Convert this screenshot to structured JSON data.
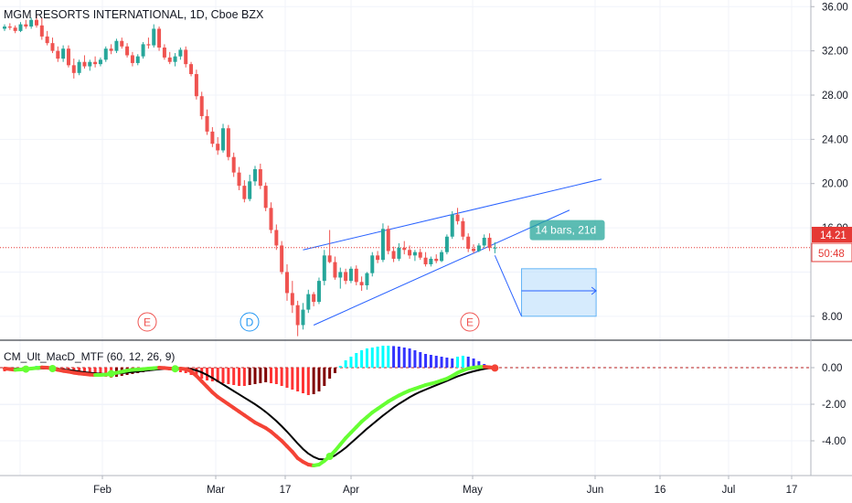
{
  "header": {
    "title": "MGM RESORTS INTERNATIONAL, 1D, Cboe BZX"
  },
  "price_axis": {
    "ticks": [
      "36.00",
      "32.00",
      "28.00",
      "24.00",
      "20.00",
      "16.00",
      "8.00"
    ],
    "last_price": "14.21",
    "countdown": "50:48"
  },
  "indicator": {
    "title": "CM_Ult_MacD_MTF (60, 12, 26, 9)",
    "ticks": [
      "0.00",
      "-2.00",
      "-4.00"
    ]
  },
  "time_axis": {
    "labels": [
      "Feb",
      "Mar",
      "17",
      "Apr",
      "May",
      "Jun",
      "16",
      "Jul",
      "17"
    ]
  },
  "event_markers": [
    {
      "label": "E"
    },
    {
      "label": "D"
    },
    {
      "label": "E"
    }
  ],
  "measure_label": "14 bars, 21d",
  "colors": {
    "bull": "#26a69a",
    "bear": "#ef5350",
    "trendline": "#2962ff",
    "price_line": "#e53935",
    "macd_fast_down": "#f44336",
    "macd_fast_up": "#66ff33",
    "macd_signal": "#000000",
    "hist_up_strong": "#00ffff",
    "hist_up_weak": "#3333ff",
    "hist_down_strong": "#ff3333",
    "hist_down_weak": "#800000",
    "measure_fill": "#bbdefb",
    "measure_label_bg": "#26a69a"
  },
  "chart_data": {
    "type": "candlestick",
    "symbol": "MGM RESORTS INTERNATIONAL",
    "interval": "1D",
    "exchange": "Cboe BZX",
    "ylim": [
      6,
      36.6
    ],
    "yticks": [
      8,
      16,
      20,
      24,
      28,
      32,
      36
    ],
    "last_price": 14.21,
    "candles": [
      [
        34.0,
        34.4,
        33.8,
        34.2
      ],
      [
        34.2,
        34.5,
        33.9,
        34.1
      ],
      [
        34.1,
        34.3,
        33.6,
        33.8
      ],
      [
        33.8,
        34.6,
        33.7,
        34.4
      ],
      [
        34.4,
        34.8,
        34.0,
        34.2
      ],
      [
        34.2,
        35.0,
        34.0,
        34.8
      ],
      [
        34.8,
        35.2,
        34.1,
        34.3
      ],
      [
        34.3,
        35.0,
        33.0,
        33.3
      ],
      [
        33.3,
        33.8,
        32.5,
        32.7
      ],
      [
        32.7,
        33.2,
        31.8,
        32.0
      ],
      [
        32.0,
        32.4,
        31.0,
        31.3
      ],
      [
        31.3,
        32.5,
        31.0,
        32.2
      ],
      [
        32.2,
        32.5,
        30.5,
        30.7
      ],
      [
        30.7,
        31.3,
        29.5,
        30.0
      ],
      [
        30.0,
        31.2,
        29.8,
        31.0
      ],
      [
        31.0,
        31.6,
        30.4,
        30.6
      ],
      [
        30.6,
        31.2,
        30.2,
        31.0
      ],
      [
        31.0,
        31.5,
        30.5,
        30.8
      ],
      [
        30.8,
        31.4,
        30.6,
        31.2
      ],
      [
        31.2,
        32.4,
        31.0,
        32.2
      ],
      [
        32.2,
        32.6,
        31.7,
        32.0
      ],
      [
        32.0,
        33.1,
        31.8,
        32.9
      ],
      [
        32.9,
        33.2,
        32.2,
        32.4
      ],
      [
        32.4,
        32.7,
        31.4,
        31.6
      ],
      [
        31.6,
        31.9,
        30.6,
        30.9
      ],
      [
        30.9,
        31.7,
        30.7,
        31.5
      ],
      [
        31.5,
        32.8,
        31.3,
        32.6
      ],
      [
        32.6,
        33.2,
        32.2,
        32.5
      ],
      [
        32.5,
        34.4,
        32.3,
        34.0
      ],
      [
        34.0,
        34.2,
        32.0,
        32.3
      ],
      [
        32.3,
        32.6,
        31.2,
        31.4
      ],
      [
        31.4,
        31.9,
        30.8,
        31.0
      ],
      [
        31.0,
        31.8,
        30.6,
        31.5
      ],
      [
        31.5,
        32.3,
        31.2,
        32.1
      ],
      [
        32.1,
        32.4,
        30.5,
        30.8
      ],
      [
        30.8,
        31.0,
        29.7,
        29.9
      ],
      [
        29.9,
        30.3,
        27.6,
        27.9
      ],
      [
        27.9,
        28.3,
        25.8,
        26.1
      ],
      [
        26.1,
        26.7,
        24.4,
        24.7
      ],
      [
        24.7,
        25.1,
        23.3,
        23.6
      ],
      [
        23.6,
        24.2,
        22.6,
        23.0
      ],
      [
        23.0,
        25.4,
        22.8,
        25.0
      ],
      [
        25.0,
        25.3,
        22.1,
        22.4
      ],
      [
        22.4,
        22.8,
        20.6,
        21.0
      ],
      [
        21.0,
        21.5,
        19.4,
        19.8
      ],
      [
        19.8,
        20.3,
        18.3,
        18.6
      ],
      [
        18.6,
        20.8,
        18.4,
        20.2
      ],
      [
        20.2,
        21.6,
        19.8,
        21.3
      ],
      [
        21.3,
        21.8,
        19.5,
        19.8
      ],
      [
        19.8,
        20.1,
        17.5,
        17.8
      ],
      [
        17.8,
        18.3,
        15.5,
        15.8
      ],
      [
        15.8,
        16.3,
        14.0,
        14.4
      ],
      [
        14.4,
        14.8,
        11.8,
        12.0
      ],
      [
        12.0,
        12.7,
        9.4,
        10.1
      ],
      [
        10.1,
        11.2,
        8.3,
        9.0
      ],
      [
        9.0,
        9.4,
        6.2,
        7.2
      ],
      [
        7.2,
        9.2,
        6.8,
        8.6
      ],
      [
        8.6,
        10.4,
        8.3,
        10.0
      ],
      [
        10.0,
        10.2,
        8.9,
        9.3
      ],
      [
        9.3,
        11.5,
        9.1,
        11.2
      ],
      [
        11.2,
        14.0,
        10.8,
        13.5
      ],
      [
        13.5,
        15.8,
        12.8,
        12.9
      ],
      [
        12.9,
        13.4,
        11.3,
        11.5
      ],
      [
        11.5,
        12.4,
        10.5,
        12.0
      ],
      [
        12.0,
        12.3,
        10.9,
        11.2
      ],
      [
        11.2,
        12.5,
        11.0,
        12.3
      ],
      [
        12.3,
        12.6,
        10.8,
        11.1
      ],
      [
        11.1,
        11.6,
        10.3,
        10.8
      ],
      [
        10.8,
        12.0,
        10.4,
        11.9
      ],
      [
        11.9,
        13.8,
        11.6,
        13.5
      ],
      [
        13.5,
        13.9,
        12.8,
        13.1
      ],
      [
        13.1,
        16.4,
        12.9,
        15.9
      ],
      [
        15.9,
        16.2,
        13.6,
        13.9
      ],
      [
        13.9,
        14.3,
        12.9,
        13.2
      ],
      [
        13.2,
        14.6,
        13.0,
        14.2
      ],
      [
        14.2,
        14.8,
        13.6,
        14.0
      ],
      [
        14.0,
        14.4,
        13.2,
        13.5
      ],
      [
        13.5,
        14.0,
        13.0,
        13.8
      ],
      [
        13.8,
        14.1,
        13.1,
        13.3
      ],
      [
        13.3,
        13.8,
        12.5,
        12.7
      ],
      [
        12.7,
        13.4,
        12.5,
        13.2
      ],
      [
        13.2,
        13.6,
        12.8,
        13.0
      ],
      [
        13.0,
        14.0,
        12.9,
        13.8
      ],
      [
        13.8,
        15.4,
        13.6,
        15.2
      ],
      [
        15.2,
        17.5,
        15.0,
        17.2
      ],
      [
        17.2,
        17.8,
        16.3,
        16.6
      ],
      [
        16.6,
        16.9,
        14.9,
        15.2
      ],
      [
        15.2,
        15.5,
        13.8,
        14.1
      ],
      [
        14.1,
        14.5,
        13.7,
        13.9
      ],
      [
        13.9,
        14.6,
        13.8,
        14.4
      ],
      [
        14.4,
        15.4,
        14.2,
        15.1
      ],
      [
        15.1,
        15.5,
        13.9,
        14.2
      ],
      [
        14.2,
        14.7,
        13.7,
        14.21
      ]
    ],
    "annotations": {
      "rising_wedge": {
        "upper_line": [
          [
            56,
            14.0
          ],
          [
            112,
            20.4
          ]
        ],
        "lower_line": [
          [
            58,
            7.2
          ],
          [
            106,
            17.6
          ]
        ]
      },
      "date_range": {
        "bars": 14,
        "days": 21,
        "label": "14 bars, 21d"
      },
      "projection": {
        "from_bar": 97,
        "to_bar": 111,
        "from_price": 13.5,
        "to_price": 8.0
      }
    },
    "macd": {
      "title": "CM_Ult_MacD_MTF (60, 12, 26, 9)",
      "ylim": [
        -5.8,
        1.4
      ],
      "yticks": [
        0,
        -2,
        -4
      ],
      "macd": [
        -0.05,
        -0.08,
        -0.12,
        -0.1,
        -0.08,
        -0.05,
        -0.02,
        0.01,
        0.0,
        -0.05,
        -0.12,
        -0.18,
        -0.22,
        -0.28,
        -0.32,
        -0.35,
        -0.38,
        -0.4,
        -0.4,
        -0.38,
        -0.33,
        -0.28,
        -0.22,
        -0.16,
        -0.12,
        -0.1,
        -0.08,
        -0.05,
        -0.03,
        0.0,
        -0.02,
        -0.05,
        -0.06,
        -0.05,
        -0.08,
        -0.2,
        -0.45,
        -0.75,
        -1.05,
        -1.35,
        -1.6,
        -1.8,
        -2.0,
        -2.2,
        -2.4,
        -2.6,
        -2.8,
        -3.0,
        -3.15,
        -3.3,
        -3.5,
        -3.75,
        -4.0,
        -4.3,
        -4.6,
        -4.95,
        -5.15,
        -5.3,
        -5.35,
        -5.3,
        -5.1,
        -4.85,
        -4.55,
        -4.2,
        -3.85,
        -3.55,
        -3.25,
        -2.95,
        -2.7,
        -2.45,
        -2.25,
        -2.05,
        -1.85,
        -1.68,
        -1.52,
        -1.38,
        -1.25,
        -1.15,
        -1.05,
        -0.95,
        -0.88,
        -0.8,
        -0.7,
        -0.6,
        -0.45,
        -0.28,
        -0.15,
        -0.05,
        0.0,
        0.03,
        0.05,
        0.02,
        -0.02
      ],
      "signal": [
        -0.02,
        -0.03,
        -0.05,
        -0.07,
        -0.08,
        -0.08,
        -0.07,
        -0.05,
        -0.04,
        -0.05,
        -0.07,
        -0.1,
        -0.13,
        -0.17,
        -0.21,
        -0.25,
        -0.28,
        -0.31,
        -0.33,
        -0.34,
        -0.34,
        -0.32,
        -0.3,
        -0.27,
        -0.24,
        -0.21,
        -0.18,
        -0.15,
        -0.12,
        -0.09,
        -0.07,
        -0.06,
        -0.06,
        -0.05,
        -0.05,
        -0.08,
        -0.15,
        -0.26,
        -0.4,
        -0.56,
        -0.74,
        -0.92,
        -1.1,
        -1.28,
        -1.46,
        -1.64,
        -1.82,
        -2.0,
        -2.2,
        -2.42,
        -2.66,
        -2.92,
        -3.2,
        -3.5,
        -3.82,
        -4.15,
        -4.45,
        -4.7,
        -4.88,
        -5.0,
        -5.02,
        -4.95,
        -4.8,
        -4.6,
        -4.38,
        -4.12,
        -3.86,
        -3.6,
        -3.34,
        -3.1,
        -2.86,
        -2.62,
        -2.4,
        -2.18,
        -1.98,
        -1.8,
        -1.62,
        -1.46,
        -1.32,
        -1.2,
        -1.08,
        -0.96,
        -0.84,
        -0.72,
        -0.6,
        -0.48,
        -0.38,
        -0.28,
        -0.2,
        -0.13,
        -0.07,
        -0.03,
        -0.01
      ],
      "histogram": [
        -0.2,
        -0.15,
        -0.1,
        -0.05,
        0.0,
        0.05,
        0.1,
        0.1,
        0.05,
        0.0,
        -0.05,
        -0.1,
        -0.15,
        -0.2,
        -0.25,
        -0.3,
        -0.35,
        -0.4,
        -0.45,
        -0.5,
        -0.55,
        -0.5,
        -0.45,
        -0.4,
        -0.35,
        -0.3,
        -0.25,
        -0.2,
        -0.15,
        -0.1,
        -0.1,
        -0.15,
        -0.2,
        -0.25,
        -0.3,
        -0.4,
        -0.5,
        -0.6,
        -0.7,
        -0.75,
        -0.8,
        -0.85,
        -0.9,
        -0.95,
        -1.0,
        -1.0,
        -0.95,
        -0.9,
        -0.85,
        -0.8,
        -0.85,
        -0.9,
        -1.0,
        -1.1,
        -1.2,
        -1.3,
        -1.4,
        -1.5,
        -1.45,
        -1.3,
        -1.0,
        -0.6,
        -0.3,
        0.1,
        0.4,
        0.6,
        0.8,
        0.95,
        1.05,
        1.1,
        1.15,
        1.2,
        1.2,
        1.18,
        1.15,
        1.1,
        1.05,
        0.95,
        0.85,
        0.75,
        0.7,
        0.65,
        0.6,
        0.55,
        0.5,
        0.6,
        0.65,
        0.6,
        0.5,
        0.35,
        0.2,
        0.1,
        0.0
      ]
    }
  }
}
